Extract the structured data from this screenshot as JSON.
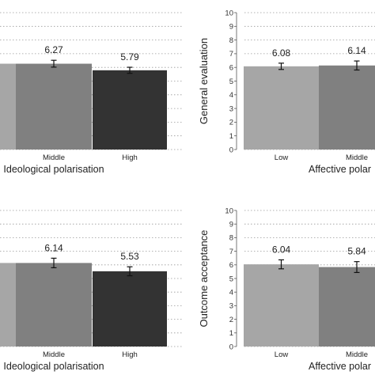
{
  "chart_data": [
    {
      "type": "bar",
      "panel": "top-left",
      "categories": [
        "",
        "Middle",
        "High"
      ],
      "values": [
        6.27,
        6.27,
        5.79
      ],
      "value_labels": [
        "",
        "6.27",
        "5.79"
      ],
      "error": [
        0.25,
        0.25,
        0.22
      ],
      "colors": [
        "#a6a6a6",
        "#808080",
        "#333333"
      ],
      "xlabel": "Ideological polarisation",
      "ylabel": "",
      "ylim": [
        0,
        10
      ],
      "grid": true
    },
    {
      "type": "bar",
      "panel": "top-right",
      "categories": [
        "Low",
        "Middle"
      ],
      "values": [
        6.08,
        6.14
      ],
      "value_labels": [
        "6.08",
        "6.14"
      ],
      "error": [
        0.23,
        0.33
      ],
      "colors": [
        "#a6a6a6",
        "#808080"
      ],
      "xlabel": "Affective polar",
      "ylabel": "General evaluation",
      "ylim": [
        0,
        10
      ],
      "yticks": [
        "0",
        "1",
        "2",
        "3",
        "4",
        "5",
        "6",
        "7",
        "8",
        "9",
        "10"
      ],
      "grid": true
    },
    {
      "type": "bar",
      "panel": "bottom-left",
      "categories": [
        "",
        "Middle",
        "High"
      ],
      "values": [
        6.14,
        6.14,
        5.53
      ],
      "value_labels": [
        "",
        "6.14",
        "5.53"
      ],
      "error": [
        0.35,
        0.35,
        0.33
      ],
      "colors": [
        "#a6a6a6",
        "#808080",
        "#333333"
      ],
      "xlabel": "Ideological polarisation",
      "ylabel": "",
      "ylim": [
        0,
        10
      ],
      "grid": true
    },
    {
      "type": "bar",
      "panel": "bottom-right",
      "categories": [
        "Low",
        "Middle"
      ],
      "values": [
        6.04,
        5.84
      ],
      "value_labels": [
        "6.04",
        "5.84"
      ],
      "error": [
        0.33,
        0.4
      ],
      "colors": [
        "#a6a6a6",
        "#808080"
      ],
      "xlabel": "Affective polar",
      "ylabel": "Outcome acceptance",
      "ylim": [
        0,
        10
      ],
      "yticks": [
        "0",
        "1",
        "2",
        "3",
        "4",
        "5",
        "6",
        "7",
        "8",
        "9",
        "10"
      ],
      "grid": true
    }
  ]
}
